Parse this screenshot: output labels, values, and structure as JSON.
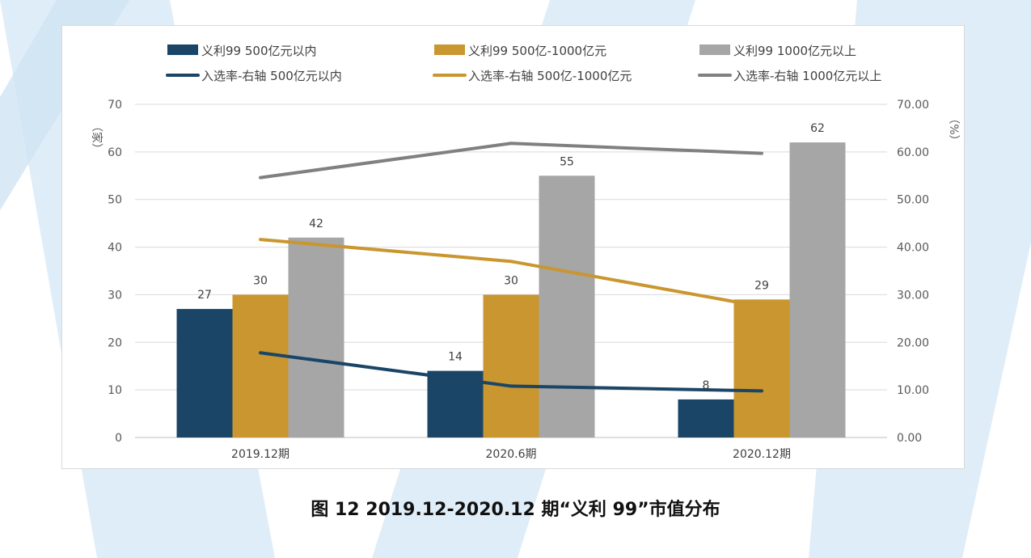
{
  "caption": "图 12 2019.12-2020.12 期“义利 99”市值分布",
  "chart_data": {
    "type": "bar",
    "categories": [
      "2019.12期",
      "2020.6期",
      "2020.12期"
    ],
    "series": [
      {
        "name": "义利99 500亿元以内",
        "kind": "bar",
        "axis": "left",
        "color": "#1b4566",
        "values": [
          27,
          14,
          8
        ]
      },
      {
        "name": "义利99 500亿-1000亿元",
        "kind": "bar",
        "axis": "left",
        "color": "#c9962f",
        "values": [
          30,
          30,
          29
        ]
      },
      {
        "name": "义利99 1000亿元以上",
        "kind": "bar",
        "axis": "left",
        "color": "#a6a6a6",
        "values": [
          42,
          55,
          62
        ]
      },
      {
        "name": "入选率-右轴 500亿元以内",
        "kind": "line",
        "axis": "right",
        "color": "#1b4566",
        "values": [
          17.8,
          10.8,
          9.8
        ]
      },
      {
        "name": "入选率-右轴 500亿-1000亿元",
        "kind": "line",
        "axis": "right",
        "color": "#c9962f",
        "values": [
          41.6,
          37.0,
          27.5
        ]
      },
      {
        "name": "入选率-右轴 1000亿元以上",
        "kind": "line",
        "axis": "right",
        "color": "#808080",
        "values": [
          54.6,
          61.8,
          59.7
        ]
      }
    ],
    "y_left": {
      "label": "（家）",
      "min": 0,
      "max": 70,
      "ticks": [
        "0",
        "10",
        "20",
        "30",
        "40",
        "50",
        "60",
        "70"
      ]
    },
    "y_right": {
      "label": "（%）",
      "min": 0,
      "max": 70,
      "ticks": [
        "0.00",
        "10.00",
        "20.00",
        "30.00",
        "40.00",
        "50.00",
        "60.00",
        "70.00"
      ]
    },
    "grid": true,
    "legend_position": "top",
    "data_labels": true
  }
}
